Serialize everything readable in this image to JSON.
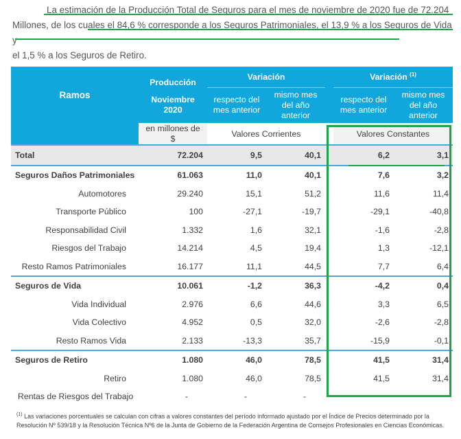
{
  "intro": {
    "line1": "La estimación de la Producción Total de Seguros para el mes de noviembre de 2020 fue de 72.204",
    "line2": "Millones, de los cuales el 84,6 % corresponde a los Seguros Patrimoniales, el 13,9 % a los Seguros de Vida y",
    "line3": "el 1,5 % a los Seguros de Retiro."
  },
  "header": {
    "ramos": "Ramos",
    "produccion_title": "Producción",
    "produccion_month": "Noviembre",
    "produccion_year": "2020",
    "produccion_unit": "en millones de $",
    "variacion": "Variación",
    "variacion_const": "Variación",
    "variacion_const_sup": "(1)",
    "col_mes_anterior": "respecto del mes anterior",
    "col_ano_anterior": "mismo mes del año anterior",
    "valores_corrientes": "Valores Corrientes",
    "valores_constantes": "Valores Constantes"
  },
  "rows": [
    {
      "label": "Total",
      "prod": "72.204",
      "c1": "9,5",
      "c2": "40,1",
      "k1": "6,2",
      "k2": "3,1"
    },
    {
      "label": "Seguros Daños Patrimoniales",
      "prod": "61.063",
      "c1": "11,0",
      "c2": "40,1",
      "k1": "7,6",
      "k2": "3,2"
    },
    {
      "label": "Automotores",
      "prod": "29.240",
      "c1": "15,1",
      "c2": "51,2",
      "k1": "11,6",
      "k2": "11,4"
    },
    {
      "label": "Transporte Público",
      "prod": "100",
      "c1": "-27,1",
      "c2": "-19,7",
      "k1": "-29,1",
      "k2": "-40,8"
    },
    {
      "label": "Responsabilidad Civil",
      "prod": "1.332",
      "c1": "1,6",
      "c2": "32,1",
      "k1": "-1,6",
      "k2": "-2,8"
    },
    {
      "label": "Riesgos del Trabajo",
      "prod": "14.214",
      "c1": "4,5",
      "c2": "19,4",
      "k1": "1,3",
      "k2": "-12,1"
    },
    {
      "label": "Resto Ramos Patrimoniales",
      "prod": "16.177",
      "c1": "11,1",
      "c2": "44,5",
      "k1": "7,7",
      "k2": "6,4"
    },
    {
      "label": "Seguros de Vida",
      "prod": "10.061",
      "c1": "-1,2",
      "c2": "36,3",
      "k1": "-4,2",
      "k2": "0,4"
    },
    {
      "label": "Vida Individual",
      "prod": "2.976",
      "c1": "6,6",
      "c2": "44,6",
      "k1": "3,3",
      "k2": "6,5"
    },
    {
      "label": "Vida Colectivo",
      "prod": "4.952",
      "c1": "0,5",
      "c2": "32,0",
      "k1": "-2,6",
      "k2": "-2,8"
    },
    {
      "label": "Resto Ramos Vida",
      "prod": "2.133",
      "c1": "-13,3",
      "c2": "35,7",
      "k1": "-15,9",
      "k2": "-0,1"
    },
    {
      "label": "Seguros de Retiro",
      "prod": "1.080",
      "c1": "46,0",
      "c2": "78,5",
      "k1": "41,5",
      "k2": "31,4"
    },
    {
      "label": "Retiro",
      "prod": "1.080",
      "c1": "46,0",
      "c2": "78,5",
      "k1": "41,5",
      "k2": "31,4"
    },
    {
      "label": "Rentas de Riesgos del Trabajo",
      "prod": "-",
      "c1": "-",
      "c2": "-",
      "k1": "",
      "k2": ""
    }
  ],
  "footnote": {
    "sup": "(1)",
    "text": "Las variaciones porcentuales se calculan con cifras a valores constantes del período informado ajustado por el Índice de Precios determinado por la Resolución Nº 539/18 y la Resolución Técnica Nº6 de la Junta de Gobierno de la Federación Argentina de Consejos Profesionales en Ciencias Económicas."
  }
}
